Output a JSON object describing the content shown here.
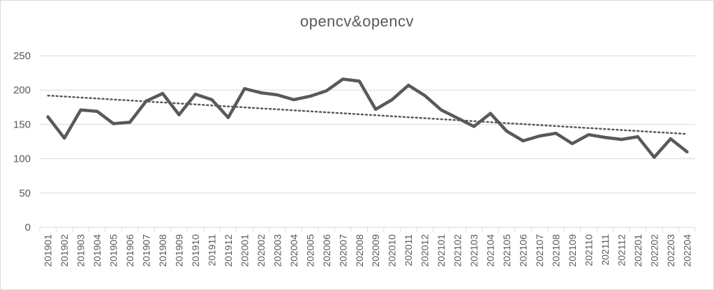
{
  "chart_data": {
    "type": "line",
    "title": "opencv&opencv",
    "xlabel": "",
    "ylabel": "",
    "ylim": [
      0,
      250
    ],
    "yticks": [
      0,
      50,
      100,
      150,
      200,
      250
    ],
    "grid": true,
    "legend": "none",
    "categories": [
      "201901",
      "201902",
      "201903",
      "201904",
      "201905",
      "201906",
      "201907",
      "201908",
      "201909",
      "201910",
      "201911",
      "201912",
      "202001",
      "202002",
      "202003",
      "202004",
      "202005",
      "202006",
      "202007",
      "202008",
      "202009",
      "202010",
      "202011",
      "202012",
      "202101",
      "202102",
      "202103",
      "202104",
      "202105",
      "202106",
      "202107",
      "202108",
      "202109",
      "202110",
      "202111",
      "202112",
      "202201",
      "202202",
      "202203",
      "202204"
    ],
    "series": [
      {
        "values": [
          161,
          130,
          171,
          169,
          151,
          153,
          184,
          195,
          164,
          194,
          186,
          160,
          202,
          196,
          193,
          186,
          191,
          199,
          216,
          213,
          172,
          186,
          207,
          192,
          171,
          159,
          147,
          166,
          140,
          126,
          133,
          137,
          122,
          135,
          131,
          128,
          132,
          102,
          129,
          110
        ]
      }
    ],
    "trendline": {
      "type": "linear",
      "style": "dotted",
      "start": 192,
      "end": 136
    },
    "colors": {
      "series": "#595959",
      "trend": "#595959",
      "grid": "#d9d9d9",
      "text": "#595959"
    }
  }
}
